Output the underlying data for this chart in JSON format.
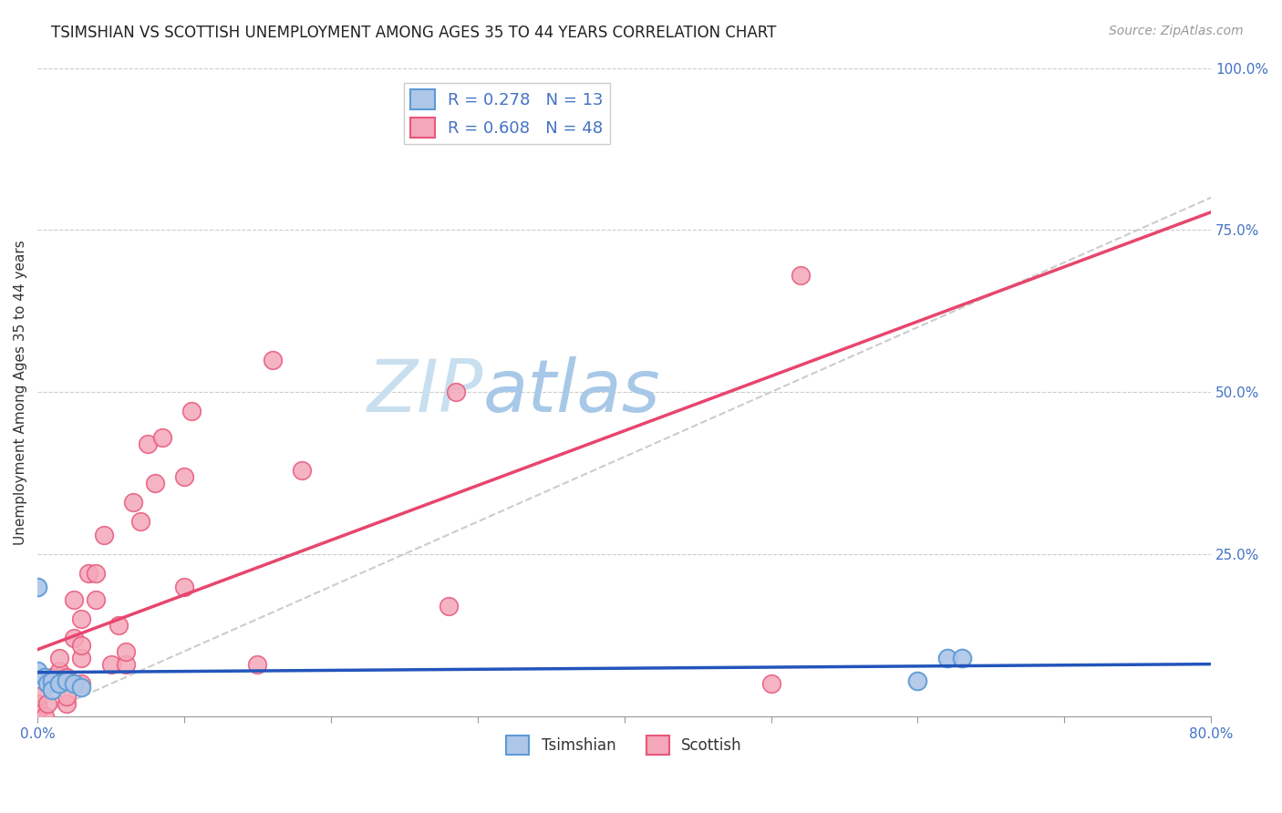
{
  "title": "TSIMSHIAN VS SCOTTISH UNEMPLOYMENT AMONG AGES 35 TO 44 YEARS CORRELATION CHART",
  "source": "Source: ZipAtlas.com",
  "ylabel": "Unemployment Among Ages 35 to 44 years",
  "xlim": [
    0.0,
    0.8
  ],
  "ylim": [
    0.0,
    1.0
  ],
  "yticks_right": [
    0.0,
    0.25,
    0.5,
    0.75,
    1.0
  ],
  "ytick_right_labels": [
    "",
    "25.0%",
    "50.0%",
    "75.0%",
    "100.0%"
  ],
  "tsimshian_color": "#aec6e8",
  "scottish_color": "#f4a7b9",
  "tsimshian_edge": "#5b9bd5",
  "scottish_edge": "#e8567a",
  "regression_tsimshian_color": "#2255bb",
  "regression_scottish_color": "#e8456e",
  "dashed_line_color": "#cccccc",
  "legend_tsimshian_label": "R = 0.278   N = 13",
  "legend_scottish_label": "R = 0.608   N = 48",
  "legend_bottom_tsimshian": "Tsimshian",
  "legend_bottom_scottish": "Scottish",
  "watermark_zip_color": "#c8dff0",
  "watermark_atlas_color": "#a8c8e8",
  "grid_color": "#cccccc",
  "background_color": "#ffffff",
  "tsimshian_x": [
    0.0,
    0.0,
    0.005,
    0.007,
    0.01,
    0.01,
    0.015,
    0.02,
    0.025,
    0.03,
    0.6,
    0.62,
    0.63
  ],
  "tsimshian_y": [
    0.2,
    0.07,
    0.06,
    0.05,
    0.055,
    0.04,
    0.05,
    0.055,
    0.05,
    0.045,
    0.055,
    0.09,
    0.09
  ],
  "scottish_x": [
    0.0,
    0.0,
    0.0,
    0.0,
    0.0,
    0.0,
    0.0,
    0.0,
    0.0,
    0.005,
    0.007,
    0.01,
    0.01,
    0.012,
    0.015,
    0.015,
    0.02,
    0.02,
    0.02,
    0.025,
    0.025,
    0.03,
    0.03,
    0.03,
    0.03,
    0.035,
    0.04,
    0.04,
    0.045,
    0.05,
    0.055,
    0.06,
    0.06,
    0.065,
    0.07,
    0.075,
    0.08,
    0.085,
    0.1,
    0.1,
    0.105,
    0.15,
    0.16,
    0.18,
    0.28,
    0.285,
    0.5,
    0.52
  ],
  "scottish_y": [
    0.0,
    0.0,
    0.0,
    0.0,
    0.01,
    0.01,
    0.02,
    0.02,
    0.03,
    0.0,
    0.02,
    0.05,
    0.06,
    0.06,
    0.07,
    0.09,
    0.02,
    0.03,
    0.06,
    0.12,
    0.18,
    0.05,
    0.09,
    0.11,
    0.15,
    0.22,
    0.18,
    0.22,
    0.28,
    0.08,
    0.14,
    0.08,
    0.1,
    0.33,
    0.3,
    0.42,
    0.36,
    0.43,
    0.2,
    0.37,
    0.47,
    0.08,
    0.55,
    0.38,
    0.17,
    0.5,
    0.05,
    0.68
  ]
}
